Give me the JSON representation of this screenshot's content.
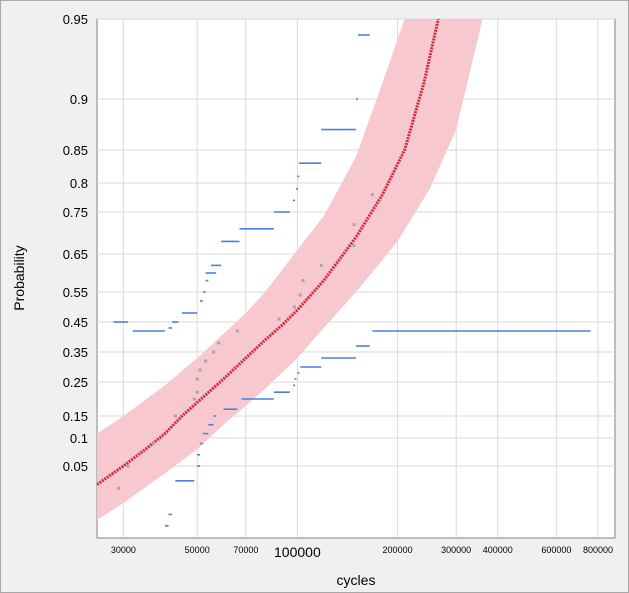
{
  "chart_data": {
    "type": "scatter",
    "title": "",
    "xlabel": "cycles",
    "ylabel": "Probability",
    "x_scale": "log",
    "y_scale": "probability",
    "xlim": [
      25000,
      900000
    ],
    "ylim": [
      0.0,
      0.95
    ],
    "grid": true,
    "x_ticks": [
      {
        "value": 30000,
        "label": "30000"
      },
      {
        "value": 50000,
        "label": "50000"
      },
      {
        "value": 70000,
        "label": "70000"
      },
      {
        "value": 100000,
        "label": "100000"
      },
      {
        "value": 200000,
        "label": "200000"
      },
      {
        "value": 300000,
        "label": "300000"
      },
      {
        "value": 400000,
        "label": "400000"
      },
      {
        "value": 600000,
        "label": "600000"
      },
      {
        "value": 800000,
        "label": "800000"
      }
    ],
    "y_ticks": [
      {
        "value": 0.05,
        "label": "0.05"
      },
      {
        "value": 0.1,
        "label": "0.1"
      },
      {
        "value": 0.15,
        "label": "0.15"
      },
      {
        "value": 0.25,
        "label": "0.25"
      },
      {
        "value": 0.35,
        "label": "0.35"
      },
      {
        "value": 0.45,
        "label": "0.45"
      },
      {
        "value": 0.55,
        "label": "0.55"
      },
      {
        "value": 0.65,
        "label": "0.65"
      },
      {
        "value": 0.75,
        "label": "0.75"
      },
      {
        "value": 0.8,
        "label": "0.8"
      },
      {
        "value": 0.85,
        "label": "0.85"
      },
      {
        "value": 0.9,
        "label": "0.9"
      },
      {
        "value": 0.95,
        "label": "0.95"
      }
    ],
    "colors": {
      "fit_line": "#d42a3c",
      "band": "#f7c9cf",
      "bounds": "#4b7fe0",
      "points": "#a6a6a6",
      "grid": "#d9d9d9"
    },
    "fit_curve": [
      [
        25000,
        0.025
      ],
      [
        30000,
        0.05
      ],
      [
        35000,
        0.08
      ],
      [
        40000,
        0.11
      ],
      [
        45000,
        0.15
      ],
      [
        50000,
        0.19
      ],
      [
        60000,
        0.26
      ],
      [
        70000,
        0.33
      ],
      [
        80000,
        0.39
      ],
      [
        90000,
        0.44
      ],
      [
        100000,
        0.49
      ],
      [
        120000,
        0.58
      ],
      [
        150000,
        0.69
      ],
      [
        180000,
        0.78
      ],
      [
        210000,
        0.85
      ],
      [
        240000,
        0.91
      ],
      [
        265000,
        0.95
      ]
    ],
    "band_upper": [
      [
        25000,
        0.11
      ],
      [
        30000,
        0.15
      ],
      [
        40000,
        0.24
      ],
      [
        50000,
        0.33
      ],
      [
        60000,
        0.41
      ],
      [
        70000,
        0.48
      ],
      [
        80000,
        0.55
      ],
      [
        100000,
        0.66
      ],
      [
        120000,
        0.74
      ],
      [
        150000,
        0.84
      ],
      [
        180000,
        0.91
      ],
      [
        210000,
        0.95
      ]
    ],
    "band_lower": [
      [
        25000,
        -0.03
      ],
      [
        30000,
        0.0
      ],
      [
        40000,
        0.04
      ],
      [
        50000,
        0.08
      ],
      [
        60000,
        0.13
      ],
      [
        70000,
        0.18
      ],
      [
        80000,
        0.23
      ],
      [
        100000,
        0.33
      ],
      [
        120000,
        0.43
      ],
      [
        150000,
        0.55
      ],
      [
        200000,
        0.68
      ],
      [
        250000,
        0.79
      ],
      [
        300000,
        0.87
      ],
      [
        360000,
        0.95
      ]
    ],
    "observed_points": [
      [
        29000,
        0.02
      ],
      [
        31000,
        0.05
      ],
      [
        37000,
        0.09
      ],
      [
        43000,
        0.15
      ],
      [
        49000,
        0.2
      ],
      [
        50000,
        0.22
      ],
      [
        50000,
        0.26
      ],
      [
        51000,
        0.29
      ],
      [
        53000,
        0.32
      ],
      [
        56000,
        0.35
      ],
      [
        58000,
        0.38
      ],
      [
        66000,
        0.42
      ],
      [
        88000,
        0.46
      ],
      [
        98000,
        0.5
      ],
      [
        102000,
        0.54
      ],
      [
        104000,
        0.58
      ],
      [
        118000,
        0.62
      ],
      [
        148000,
        0.67
      ],
      [
        148000,
        0.72
      ],
      [
        168000,
        0.78
      ]
    ],
    "upper_bound_steps": [
      [
        28000,
        31000,
        0.45
      ],
      [
        32000,
        40000,
        0.42
      ],
      [
        41000,
        42000,
        0.43
      ],
      [
        42000,
        44000,
        0.45
      ],
      [
        45000,
        50000,
        0.48
      ],
      [
        51000,
        52000,
        0.52
      ],
      [
        52000,
        53000,
        0.55
      ],
      [
        53000,
        54000,
        0.58
      ],
      [
        53000,
        57000,
        0.6
      ],
      [
        55000,
        59000,
        0.62
      ],
      [
        59000,
        67000,
        0.68
      ],
      [
        67000,
        85000,
        0.71
      ],
      [
        85000,
        95000,
        0.75
      ],
      [
        97000,
        98000,
        0.77
      ],
      [
        99000,
        100000,
        0.79
      ],
      [
        100000,
        101000,
        0.81
      ],
      [
        101000,
        118000,
        0.83
      ],
      [
        118000,
        150000,
        0.87
      ],
      [
        150000,
        151000,
        0.9
      ],
      [
        152000,
        165000,
        0.94
      ]
    ],
    "lower_bound_steps": [
      [
        31000,
        39000,
        -0.07
      ],
      [
        40000,
        41000,
        -0.04
      ],
      [
        41000,
        42000,
        -0.02
      ],
      [
        43000,
        49000,
        0.03
      ],
      [
        50000,
        51000,
        0.05
      ],
      [
        50000,
        51000,
        0.07
      ],
      [
        51000,
        52000,
        0.09
      ],
      [
        52000,
        54000,
        0.11
      ],
      [
        54000,
        56000,
        0.13
      ],
      [
        56000,
        57000,
        0.15
      ],
      [
        60000,
        66000,
        0.17
      ],
      [
        68000,
        85000,
        0.2
      ],
      [
        85000,
        95000,
        0.22
      ],
      [
        97000,
        98000,
        0.24
      ],
      [
        98000,
        99000,
        0.26
      ],
      [
        100000,
        101000,
        0.28
      ],
      [
        102000,
        118000,
        0.3
      ],
      [
        118000,
        150000,
        0.33
      ],
      [
        150000,
        165000,
        0.37
      ],
      [
        168000,
        760000,
        0.42
      ]
    ]
  }
}
